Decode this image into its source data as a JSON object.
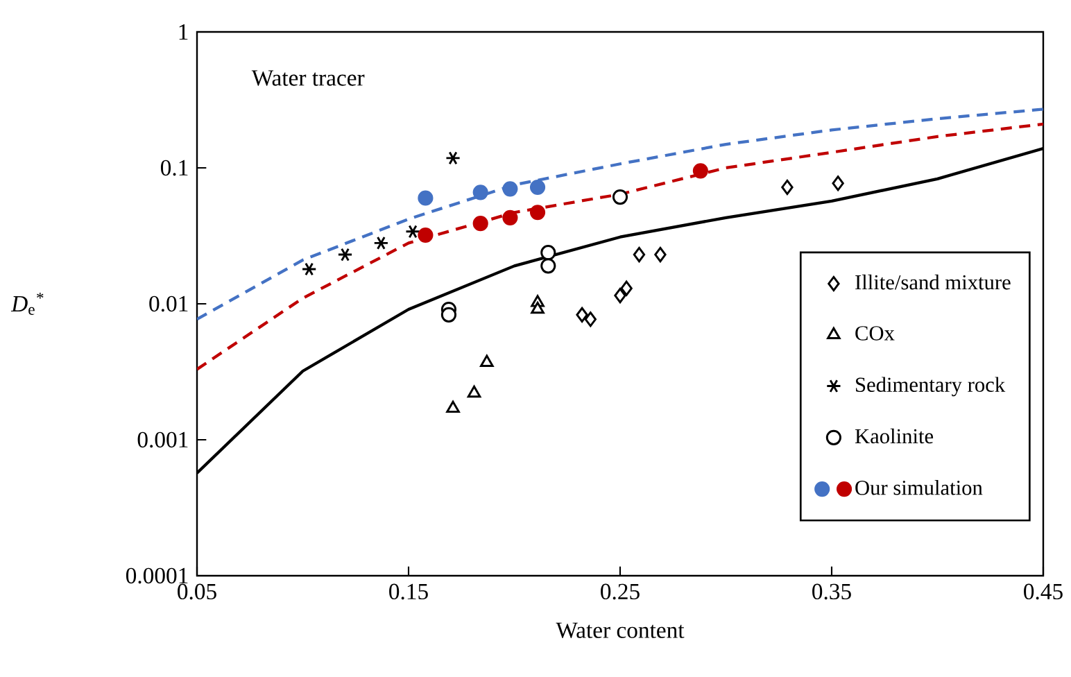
{
  "chart_data": {
    "type": "scatter",
    "xlabel": "Water content",
    "ylabel": "*D*$_{e}$$^{*}$",
    "annotations": [
      "Water tracer"
    ],
    "log": "y",
    "legend": "bottom right",
    "xlim": [
      0.05,
      0.45
    ],
    "ylim": [
      0.0001,
      1
    ],
    "xticks": [
      0.05,
      0.15,
      0.25,
      0.35,
      0.45
    ],
    "yticks": [
      0.0001,
      0.001,
      0.01,
      0.1,
      1
    ],
    "series": [
      {
        "type": "line",
        "color": "#000000",
        "marker": "none",
        "line_style": "solid",
        "x": [
          0.05,
          0.1,
          0.15,
          0.2,
          0.25,
          0.3,
          0.35,
          0.4,
          0.45
        ],
        "values": [
          0.00057,
          0.0032,
          0.0091,
          0.019,
          0.031,
          0.043,
          0.057,
          0.083,
          0.139
        ]
      },
      {
        "type": "line",
        "color": "#4472c4",
        "marker": "none",
        "line_style": "dashed",
        "x": [
          0.05,
          0.1,
          0.15,
          0.2,
          0.25,
          0.3,
          0.35,
          0.4,
          0.45
        ],
        "values": [
          0.0077,
          0.021,
          0.042,
          0.075,
          0.107,
          0.149,
          0.19,
          0.23,
          0.27
        ]
      },
      {
        "type": "line",
        "color": "#c00000",
        "marker": "none",
        "line_style": "dashed",
        "x": [
          0.05,
          0.1,
          0.15,
          0.2,
          0.25,
          0.3,
          0.35,
          0.4,
          0.45
        ],
        "values": [
          0.0033,
          0.011,
          0.028,
          0.047,
          0.064,
          0.1,
          0.13,
          0.17,
          0.21
        ]
      },
      {
        "name": "Illite/sand mixture",
        "color": "#000000",
        "marker": "diamond",
        "x": [
          0.232,
          0.236,
          0.25,
          0.253,
          0.259,
          0.269,
          0.329,
          0.353
        ],
        "values": [
          0.0083,
          0.0077,
          0.0115,
          0.013,
          0.023,
          0.023,
          0.072,
          0.077
        ]
      },
      {
        "name": "COx",
        "color": "#000000",
        "marker": "triangle",
        "x": [
          0.171,
          0.181,
          0.187,
          0.211,
          0.211
        ],
        "values": [
          0.0017,
          0.0022,
          0.0037,
          0.0102,
          0.0091
        ]
      },
      {
        "name": "Sedimentary rock",
        "color": "#000000",
        "marker": "cross",
        "x": [
          0.103,
          0.12,
          0.137,
          0.152,
          0.171
        ],
        "values": [
          0.018,
          0.023,
          0.028,
          0.034,
          0.118
        ]
      },
      {
        "name": "Kaolinite",
        "color": "#000000",
        "marker": "circle",
        "x": [
          0.169,
          0.169,
          0.216,
          0.216,
          0.25
        ],
        "values": [
          0.0091,
          0.0083,
          0.0238,
          0.019,
          0.061
        ]
      },
      {
        "name": "Our simulation",
        "color": "#c00000",
        "marker": "circle",
        "x": [
          0.158,
          0.184,
          0.198,
          0.211,
          0.288
        ],
        "values": [
          0.032,
          0.039,
          0.043,
          0.047,
          0.095
        ]
      },
      {
        "color": "#4472c4",
        "marker": "circle",
        "x": [
          0.158,
          0.184,
          0.198,
          0.211
        ],
        "values": [
          0.06,
          0.066,
          0.07,
          0.072
        ]
      }
    ]
  }
}
